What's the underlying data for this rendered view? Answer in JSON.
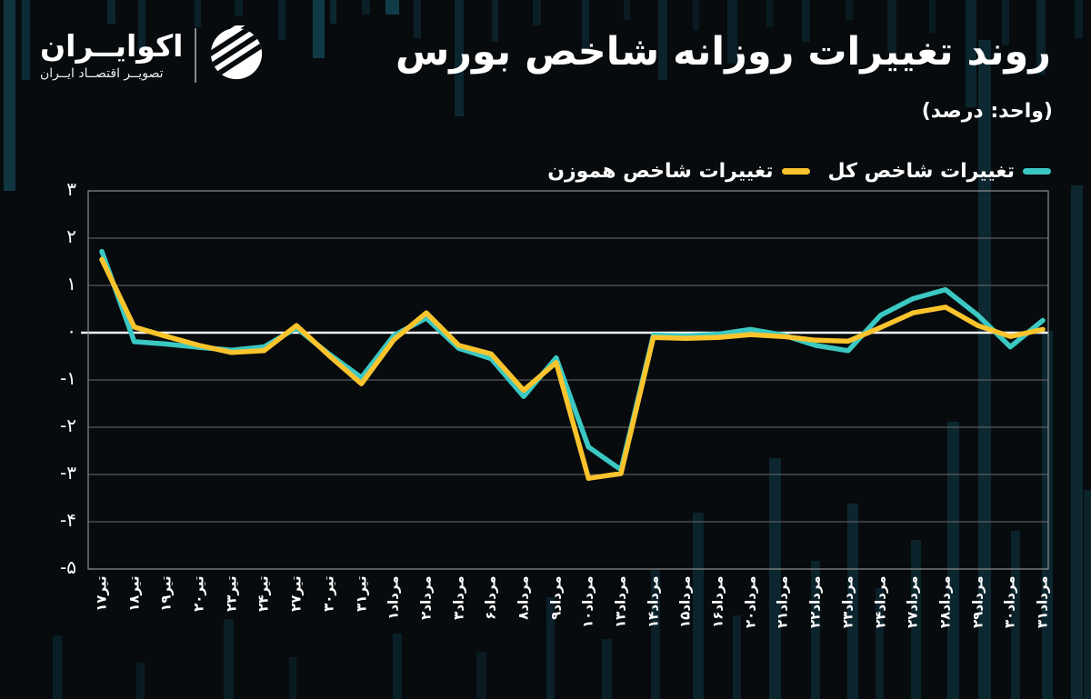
{
  "brand": {
    "name": "اکوایــران",
    "tagline": "تصویــر اقتصــاد ایــران"
  },
  "title": "روند تغییرات روزانه شاخص بورس",
  "subtitle": "(واحد: درصد)",
  "legend": [
    {
      "label": "تغییرات شاخص کل",
      "color": "#3bc8c2"
    },
    {
      "label": "تغییرات شاخص هموزن",
      "color": "#fbc42d"
    }
  ],
  "chart_data": {
    "type": "line",
    "title": "روند تغییرات روزانه شاخص بورس",
    "unit": "درصد",
    "categories": [
      "تیر۱۷",
      "تیر۱۸",
      "تیر۱۹",
      "تیر۲۰",
      "تیر۲۳",
      "تیر۲۴",
      "تیر۲۷",
      "تیر۳۰",
      "تیر۳۱",
      "مرداد۱",
      "مرداد۲",
      "مرداد۳",
      "مرداد۶",
      "مرداد۸",
      "مرداد۹",
      "مرداد۱۰",
      "مرداد۱۳",
      "مرداد۱۴",
      "مرداد۱۵",
      "مرداد۱۶",
      "مرداد۲۰",
      "مرداد۲۱",
      "مرداد۲۲",
      "مرداد۲۳",
      "مرداد۲۴",
      "مرداد۲۷",
      "مرداد۲۸",
      "مرداد۲۹",
      "مرداد۳۰",
      "مرداد۳۱"
    ],
    "series": [
      {
        "name": "تغییرات شاخص کل",
        "color": "#3bc8c2",
        "values": [
          1.72,
          -0.19,
          -0.24,
          -0.31,
          -0.37,
          -0.3,
          0.1,
          -0.45,
          -0.95,
          -0.06,
          0.31,
          -0.33,
          -0.55,
          -1.35,
          -0.53,
          -2.42,
          -2.9,
          -0.05,
          -0.07,
          -0.03,
          0.07,
          -0.05,
          -0.27,
          -0.38,
          0.37,
          0.72,
          0.91,
          0.37,
          -0.3,
          0.26
        ]
      },
      {
        "name": "تغییرات شاخص هموزن",
        "color": "#fbc42d",
        "values": [
          1.55,
          0.12,
          -0.08,
          -0.27,
          -0.42,
          -0.38,
          0.15,
          -0.48,
          -1.08,
          -0.15,
          0.42,
          -0.27,
          -0.45,
          -1.22,
          -0.63,
          -3.08,
          -2.98,
          -0.1,
          -0.12,
          -0.1,
          -0.04,
          -0.08,
          -0.16,
          -0.18,
          0.11,
          0.42,
          0.54,
          0.15,
          -0.08,
          0.07
        ]
      }
    ],
    "ylim": [
      -5,
      3
    ],
    "yticks": [
      {
        "value": 3,
        "label": "۳"
      },
      {
        "value": 2,
        "label": "۲"
      },
      {
        "value": 1,
        "label": "۱"
      },
      {
        "value": 0,
        "label": "۰"
      },
      {
        "value": -1,
        "label": "-۱"
      },
      {
        "value": -2,
        "label": "-۲"
      },
      {
        "value": -3,
        "label": "-۳"
      },
      {
        "value": -4,
        "label": "-۴"
      },
      {
        "value": -5,
        "label": "-۵"
      }
    ],
    "grid": true,
    "legend_position": "top-right"
  },
  "colors": {
    "background": "#070b0e",
    "grid": "#6b6b6b",
    "zero_line": "#f5f5f5",
    "plot_border": "#8f8f8f",
    "text": "#ffffff",
    "background_bars": "#12414f"
  }
}
